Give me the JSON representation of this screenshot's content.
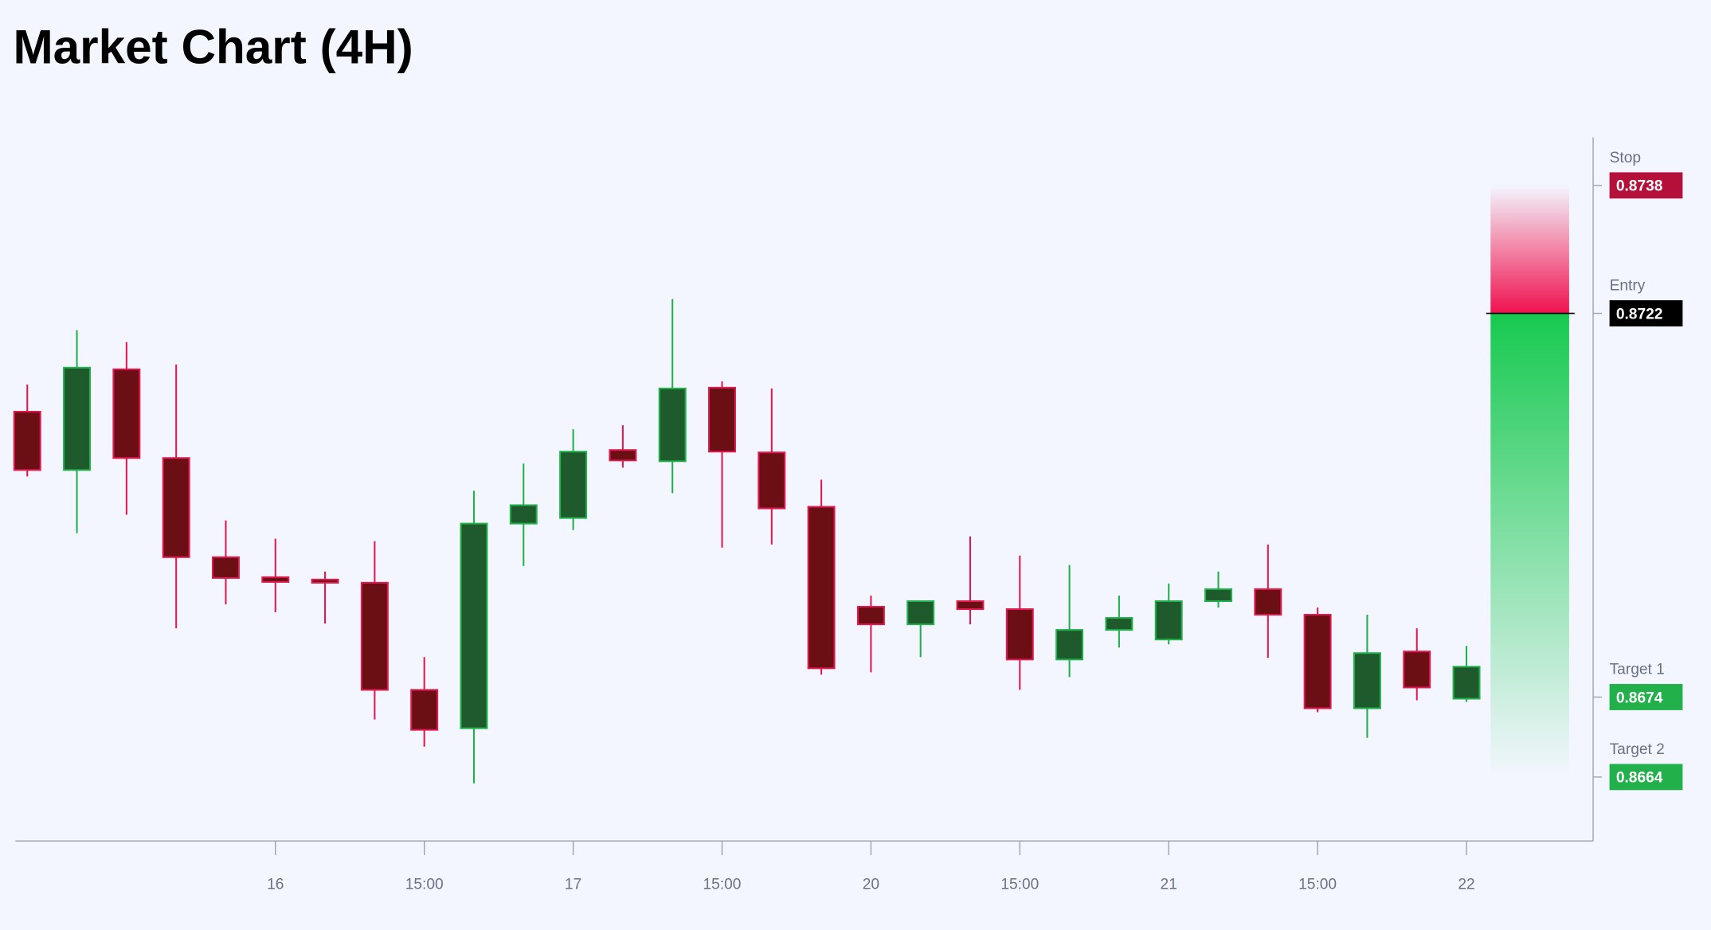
{
  "chart_data": {
    "type": "candlestick",
    "title": "Market Chart (4H)",
    "categories": [
      null,
      null,
      null,
      null,
      null,
      "16",
      null,
      null,
      "15:00",
      null,
      null,
      "17",
      null,
      null,
      "15:00",
      null,
      null,
      "20",
      null,
      null,
      "15:00",
      null,
      null,
      "21",
      null,
      null,
      "15:00",
      null,
      null,
      "22"
    ],
    "open": [
      0.87097,
      0.87024,
      0.8715,
      0.87039,
      0.86915,
      0.8689,
      0.86887,
      0.86883,
      0.86749,
      0.86701,
      0.86957,
      0.86964,
      0.87049,
      0.87035,
      0.87127,
      0.87046,
      0.86978,
      0.86853,
      0.86831,
      0.8686,
      0.8685,
      0.86787,
      0.86824,
      0.86812,
      0.8686,
      0.86875,
      0.86843,
      0.86726,
      0.86797,
      0.86738
    ],
    "high": [
      0.87131,
      0.87199,
      0.87184,
      0.87156,
      0.86961,
      0.86938,
      0.86897,
      0.86935,
      0.8679,
      0.86998,
      0.87032,
      0.87075,
      0.8708,
      0.87238,
      0.87135,
      0.87126,
      0.87012,
      0.86867,
      0.8686,
      0.86941,
      0.86917,
      0.86905,
      0.86867,
      0.86882,
      0.86897,
      0.86931,
      0.86852,
      0.86843,
      0.86826,
      0.86804
    ],
    "low": [
      0.87016,
      0.86945,
      0.86968,
      0.86826,
      0.86856,
      0.86846,
      0.86832,
      0.86712,
      0.86678,
      0.86632,
      0.86904,
      0.86949,
      0.87027,
      0.86995,
      0.86927,
      0.86931,
      0.86768,
      0.86771,
      0.8679,
      0.86831,
      0.86749,
      0.86765,
      0.86802,
      0.86806,
      0.86852,
      0.86789,
      0.86721,
      0.86689,
      0.86736,
      0.86734
    ],
    "close": [
      0.87024,
      0.87152,
      0.87039,
      0.86915,
      0.86889,
      0.86884,
      0.86883,
      0.86749,
      0.86699,
      0.86957,
      0.8698,
      0.87047,
      0.87036,
      0.87126,
      0.87047,
      0.86976,
      0.86776,
      0.86831,
      0.8686,
      0.8685,
      0.86787,
      0.86824,
      0.86839,
      0.8686,
      0.86875,
      0.86843,
      0.86726,
      0.86795,
      0.86752,
      0.86778
    ],
    "up_color": "#22b04b",
    "down_color": "#e0194f",
    "ylim": [
      0.8656,
      0.8744
    ],
    "levels": [
      {
        "name": "Stop",
        "value": 0.8738,
        "color": "#b5103a"
      },
      {
        "name": "Entry",
        "value": 0.8722,
        "color": "#000000"
      },
      {
        "name": "Target 1",
        "value": 0.8674,
        "color": "#22b04b"
      },
      {
        "name": "Target 2",
        "value": 0.8664,
        "color": "#22b04b"
      }
    ]
  }
}
